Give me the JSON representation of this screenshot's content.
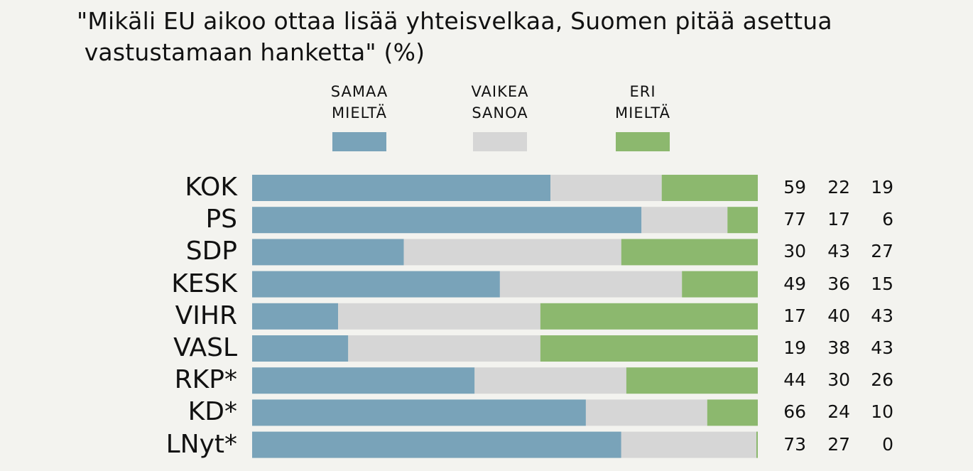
{
  "chart_data": {
    "type": "bar",
    "stacked": true,
    "orientation": "horizontal",
    "title_lines": [
      "\"Mikäli EU aikoo ottaa lisää yhteisvelkaa, Suomen pitää asettua",
      " vastustamaan hanketta\" (%)"
    ],
    "categories": [
      "KOK",
      "PS",
      "SDP",
      "KESK",
      "VIHR",
      "VASL",
      "RKP*",
      "KD*",
      "LNyt*"
    ],
    "series": [
      {
        "name": "SAMAA MIELTÄ",
        "label_lines": [
          "SAMAA",
          "MIELTÄ"
        ],
        "color": "#79a3b9",
        "values": [
          59,
          77,
          30,
          49,
          17,
          19,
          44,
          66,
          73
        ]
      },
      {
        "name": "VAIKEA SANOA",
        "label_lines": [
          "VAIKEA",
          "SANOA"
        ],
        "color": "#d6d6d6",
        "values": [
          22,
          17,
          43,
          36,
          40,
          38,
          30,
          24,
          27
        ]
      },
      {
        "name": "ERI MIELTÄ",
        "label_lines": [
          "ERI",
          "MIELTÄ"
        ],
        "color": "#8cb86e",
        "values": [
          19,
          6,
          27,
          15,
          43,
          43,
          26,
          10,
          0
        ]
      }
    ],
    "xlim": [
      0,
      100
    ],
    "legend_position": "top",
    "grid": false
  }
}
